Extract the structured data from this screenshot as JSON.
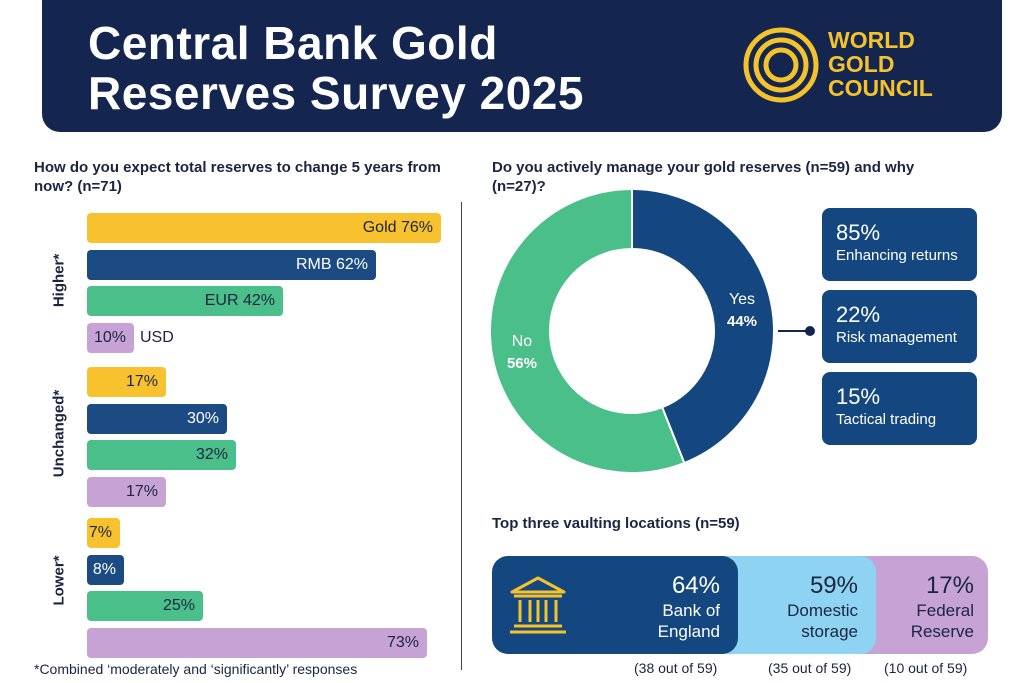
{
  "header": {
    "title_line1": "Central Bank Gold",
    "title_line2": "Reserves Survey 2025",
    "logo_line1": "WORLD",
    "logo_line2": "GOLD",
    "logo_line3": "COUNCIL"
  },
  "colors": {
    "navy": "#14264f",
    "gold": "#f7c22e",
    "blue": "#1c4b83",
    "green": "#4bbf8a",
    "purple": "#c6a3d4",
    "light_blue": "#8ed3f2"
  },
  "left": {
    "question": "How do you expect total reserves to change 5 years from now? (n=71)",
    "footnote": "*Combined ‘moderately and ‘significantly’ responses"
  },
  "right": {
    "question": "Do you actively manage your gold reserves (n=59) and why (n=27)?",
    "vault_title": "Top three vaulting locations (n=59)"
  },
  "chart_data": [
    {
      "type": "bar",
      "orientation": "horizontal",
      "title": "How do you expect total reserves to change 5 years from now? (n=71)",
      "groups": [
        {
          "name": "Higher*",
          "bars": [
            {
              "label": "Gold",
              "value": 76,
              "text": "Gold 76%",
              "color": "#f7c22e",
              "text_color": "#1b2440"
            },
            {
              "label": "RMB",
              "value": 62,
              "text": "RMB 62%",
              "color": "#1c4b83",
              "text_color": "#ffffff"
            },
            {
              "label": "EUR",
              "value": 42,
              "text": "EUR 42%",
              "color": "#4bbf8a",
              "text_color": "#1b2440"
            },
            {
              "label": "USD",
              "value": 10,
              "text": "10%",
              "outside_text": "USD",
              "color": "#c6a3d4",
              "text_color": "#1b2440"
            }
          ]
        },
        {
          "name": "Unchanged*",
          "bars": [
            {
              "label": "Gold",
              "value": 17,
              "text": "17%",
              "color": "#f7c22e",
              "text_color": "#1b2440"
            },
            {
              "label": "RMB",
              "value": 30,
              "text": "30%",
              "color": "#1c4b83",
              "text_color": "#ffffff"
            },
            {
              "label": "EUR",
              "value": 32,
              "text": "32%",
              "color": "#4bbf8a",
              "text_color": "#1b2440"
            },
            {
              "label": "USD",
              "value": 17,
              "text": "17%",
              "color": "#c6a3d4",
              "text_color": "#1b2440"
            }
          ]
        },
        {
          "name": "Lower*",
          "bars": [
            {
              "label": "Gold",
              "value": 7,
              "text": "7%",
              "color": "#f7c22e",
              "text_color": "#1b2440"
            },
            {
              "label": "RMB",
              "value": 8,
              "text": "8%",
              "color": "#1c4b83",
              "text_color": "#ffffff"
            },
            {
              "label": "EUR",
              "value": 25,
              "text": "25%",
              "color": "#4bbf8a",
              "text_color": "#1b2440"
            },
            {
              "label": "USD",
              "value": 73,
              "text": "73%",
              "color": "#c6a3d4",
              "text_color": "#1b2440"
            }
          ]
        }
      ]
    },
    {
      "type": "pie",
      "variant": "donut",
      "title": "Do you actively manage your gold reserves (n=59) and why (n=27)?",
      "slices": [
        {
          "label": "Yes",
          "value": 44,
          "text": "44%",
          "color": "#14477f"
        },
        {
          "label": "No",
          "value": 56,
          "text": "56%",
          "color": "#4bbf8a"
        }
      ],
      "reasons": [
        {
          "value": 85,
          "pct": "85%",
          "label": "Enhancing returns"
        },
        {
          "value": 22,
          "pct": "22%",
          "label": "Risk management"
        },
        {
          "value": 15,
          "pct": "15%",
          "label": "Tactical trading"
        }
      ]
    },
    {
      "type": "bar",
      "variant": "segmented",
      "title": "Top three vaulting locations (n=59)",
      "segments": [
        {
          "label_line1": "Bank of",
          "label_line2": "England",
          "value": 64,
          "pct": "64%",
          "count": "(38 out of 59)",
          "color": "#14477f"
        },
        {
          "label_line1": "Domestic",
          "label_line2": "storage",
          "value": 59,
          "pct": "59%",
          "count": "(35 out of 59)",
          "color": "#8ed3f2"
        },
        {
          "label_line1": "Federal",
          "label_line2": "Reserve",
          "value": 17,
          "pct": "17%",
          "count": "(10 out of 59)",
          "color": "#c6a3d4"
        }
      ]
    }
  ]
}
